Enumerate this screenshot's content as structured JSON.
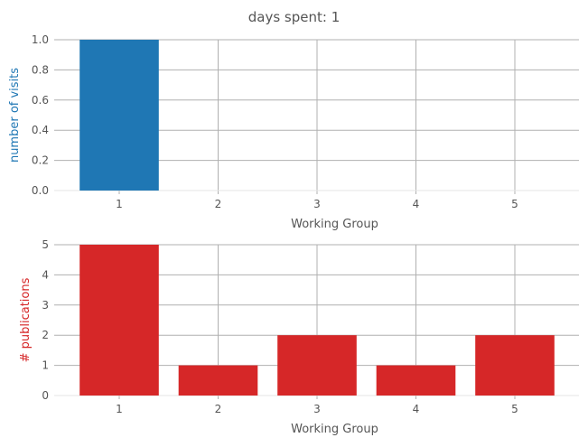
{
  "figure_title": "days spent: 1",
  "chart_data": [
    {
      "type": "bar",
      "categories": [
        "1",
        "2",
        "3",
        "4",
        "5"
      ],
      "values": [
        1.0,
        0,
        0,
        0,
        0
      ],
      "xlabel": "Working Group",
      "ylabel": "number of visits",
      "ylim": [
        0.0,
        1.0
      ],
      "yticks": [
        "0.0",
        "0.2",
        "0.4",
        "0.6",
        "0.8",
        "1.0"
      ],
      "grid": true,
      "bar_color": "#1f77b4",
      "ylabel_color": "#1f77b4"
    },
    {
      "type": "bar",
      "categories": [
        "1",
        "2",
        "3",
        "4",
        "5"
      ],
      "values": [
        5,
        1,
        2,
        1,
        2
      ],
      "xlabel": "Working Group",
      "ylabel": "# publications",
      "ylim": [
        0,
        5
      ],
      "yticks": [
        "0",
        "1",
        "2",
        "3",
        "4",
        "5"
      ],
      "grid": true,
      "bar_color": "#d62728",
      "ylabel_color": "#d62728"
    }
  ]
}
